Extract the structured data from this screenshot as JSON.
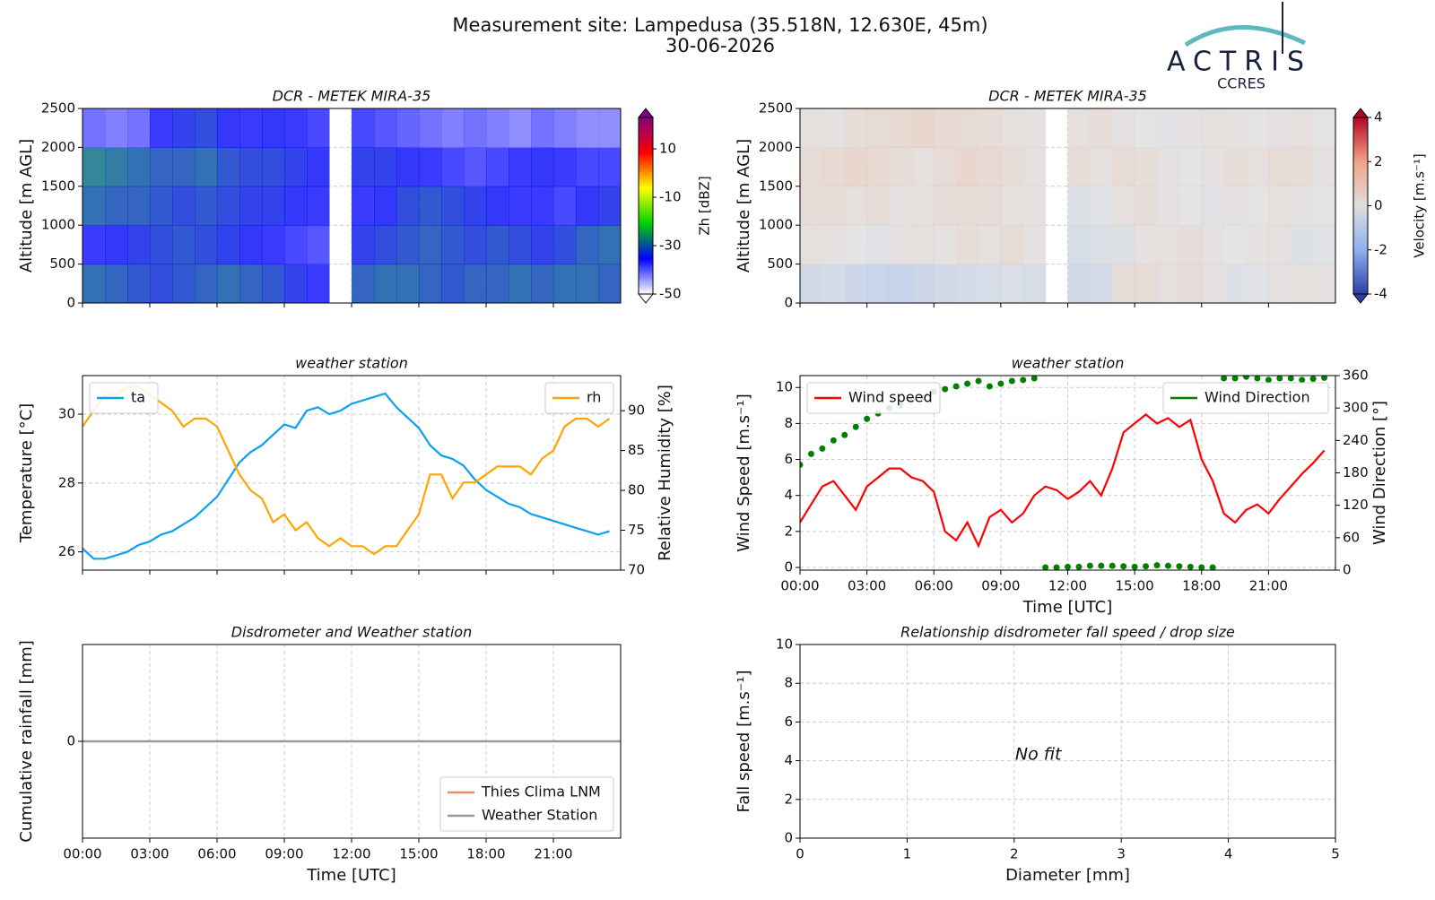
{
  "header": {
    "title": "Measurement site: Lampedusa (35.518N, 12.630E, 45m)",
    "date": "30-06-2026",
    "logo": "ACTRIS",
    "logo_sub": "CCRES"
  },
  "chart_data": [
    {
      "type": "heatmap",
      "title": "DCR - METEK MIRA-35",
      "ylabel": "Altitude [m AGL]",
      "colorbar_label": "Zh [dBZ]",
      "xlim": [
        0,
        24
      ],
      "xticks": [
        0,
        3,
        6,
        9,
        12,
        15,
        18,
        21
      ],
      "show_xtick_labels": false,
      "ylim": [
        0,
        2500
      ],
      "yticks": [
        0,
        500,
        1000,
        1500,
        2000,
        2500
      ],
      "grid": true,
      "x_bins": [
        0,
        1,
        2,
        3,
        4,
        5,
        6,
        7,
        8,
        9,
        10,
        11,
        12,
        13,
        14,
        15,
        16,
        17,
        18,
        19,
        20,
        21,
        22,
        23,
        24
      ],
      "y_bins": [
        0,
        500,
        1000,
        1500,
        2000,
        2500
      ],
      "clim": [
        -50,
        23
      ],
      "cticks": [
        -50,
        -30,
        -10,
        10
      ],
      "extend": "both",
      "colorscale": [
        "#ffffff",
        "#0000ff",
        "#00d000",
        "#ffff00",
        "#ff0000",
        "#800080"
      ],
      "z": [
        [
          -30,
          -31,
          -32,
          -33,
          -32,
          -31,
          -30,
          -31,
          -32,
          -34,
          -36,
          null,
          -31,
          -30,
          -30,
          -31,
          -32,
          -31,
          -31,
          -30,
          -31,
          -30,
          -30,
          -31
        ],
        [
          -36,
          -35,
          -34,
          -33,
          -32,
          -33,
          -34,
          -35,
          -36,
          -37,
          -38,
          null,
          -34,
          -33,
          -32,
          -31,
          -32,
          -33,
          -32,
          -33,
          -34,
          -33,
          -31,
          -30
        ],
        [
          -30,
          -31,
          -31,
          -32,
          -33,
          -32,
          -33,
          -34,
          -34,
          -35,
          -36,
          null,
          -36,
          -35,
          -33,
          -32,
          -33,
          -34,
          -35,
          -36,
          -36,
          -37,
          -35,
          -34
        ],
        [
          -28,
          -29,
          -30,
          -31,
          -31,
          -30,
          -32,
          -33,
          -33,
          -34,
          -35,
          null,
          -34,
          -34,
          -35,
          -36,
          -37,
          -38,
          -37,
          -36,
          -35,
          -36,
          -37,
          -37
        ],
        [
          -40,
          -41,
          -40,
          -36,
          -34,
          -33,
          -35,
          -36,
          -35,
          -36,
          -37,
          null,
          -37,
          -38,
          -39,
          -40,
          -41,
          -40,
          -41,
          -42,
          -40,
          -41,
          -42,
          -42
        ]
      ]
    },
    {
      "type": "heatmap",
      "title": "DCR - METEK MIRA-35",
      "ylabel": "Altitude [m AGL]",
      "colorbar_label": "Velocity [m.s⁻¹]",
      "xlim": [
        0,
        24
      ],
      "xticks": [
        0,
        3,
        6,
        9,
        12,
        15,
        18,
        21
      ],
      "show_xtick_labels": false,
      "ylim": [
        0,
        2500
      ],
      "yticks": [
        0,
        500,
        1000,
        1500,
        2000,
        2500
      ],
      "grid": true,
      "x_bins": [
        0,
        1,
        2,
        3,
        4,
        5,
        6,
        7,
        8,
        9,
        10,
        11,
        12,
        13,
        14,
        15,
        16,
        17,
        18,
        19,
        20,
        21,
        22,
        23,
        24
      ],
      "y_bins": [
        0,
        500,
        1000,
        1500,
        2000,
        2500
      ],
      "clim": [
        -4,
        4
      ],
      "cticks": [
        -4,
        -2,
        0,
        2,
        4
      ],
      "extend": "both",
      "colorscale": [
        "#2c3fa8",
        "#8fb0f2",
        "#dddddd",
        "#f2a486",
        "#b40426"
      ],
      "z": [
        [
          -0.6,
          -0.5,
          -0.7,
          -0.8,
          -0.9,
          -0.7,
          -0.6,
          -0.5,
          -0.4,
          -0.3,
          -0.4,
          null,
          -0.6,
          -0.5,
          0.3,
          0.4,
          0.2,
          0.3,
          0.1,
          -0.2,
          -0.1,
          0.1,
          0.2,
          0.1
        ],
        [
          0.2,
          0.1,
          0.0,
          -0.1,
          0.1,
          0.2,
          0.1,
          0.3,
          0.2,
          0.4,
          0.1,
          null,
          -0.4,
          -0.3,
          -0.2,
          0.1,
          0.2,
          0.3,
          0.1,
          0.0,
          0.1,
          0.2,
          -0.2,
          -0.1
        ],
        [
          0.3,
          0.4,
          0.2,
          0.3,
          0.1,
          0.2,
          0.3,
          0.4,
          0.3,
          0.2,
          0.1,
          null,
          -0.2,
          -0.1,
          0.2,
          0.3,
          0.1,
          0.0,
          -0.1,
          0.1,
          0.0,
          0.2,
          0.1,
          0.0
        ],
        [
          0.4,
          0.5,
          0.6,
          0.5,
          0.3,
          0.2,
          0.4,
          0.6,
          0.5,
          0.3,
          0.2,
          null,
          0.3,
          0.2,
          0.4,
          0.3,
          0.1,
          0.0,
          0.1,
          0.3,
          0.2,
          0.4,
          0.3,
          0.1
        ],
        [
          0.2,
          0.1,
          0.3,
          0.4,
          0.5,
          0.6,
          0.5,
          0.4,
          0.3,
          0.2,
          0.1,
          null,
          0.2,
          0.3,
          0.1,
          0.0,
          -0.1,
          0.1,
          0.2,
          0.1,
          0.0,
          0.1,
          0.2,
          0.0
        ]
      ]
    },
    {
      "type": "line",
      "title": "weather station",
      "ylabel": "Temperature [°C]",
      "y2label": "Relative Humidity [%]",
      "xlim": [
        0,
        24
      ],
      "xticks": [
        0,
        3,
        6,
        9,
        12,
        15,
        18,
        21
      ],
      "show_xtick_labels": false,
      "ylim": [
        25.47,
        31.12
      ],
      "yticks": [
        26,
        28,
        30
      ],
      "y2lim": [
        70,
        94.4
      ],
      "y2ticks": [
        70,
        75,
        80,
        85,
        90
      ],
      "grid": true,
      "x": [
        0,
        0.5,
        1,
        1.5,
        2,
        2.5,
        3,
        3.5,
        4,
        4.5,
        5,
        5.5,
        6,
        6.5,
        7,
        7.5,
        8,
        8.5,
        9,
        9.5,
        10,
        10.5,
        11,
        11.5,
        12,
        12.5,
        13,
        13.5,
        14,
        14.5,
        15,
        15.5,
        16,
        16.5,
        17,
        17.5,
        18,
        18.5,
        19,
        19.5,
        20,
        20.5,
        21,
        21.5,
        22,
        22.5,
        23,
        23.5
      ],
      "series": [
        {
          "name": "ta",
          "color": "#0ba0f0",
          "legend": "upper left",
          "values": [
            26.1,
            25.8,
            25.8,
            25.9,
            26.0,
            26.2,
            26.3,
            26.5,
            26.6,
            26.8,
            27.0,
            27.3,
            27.6,
            28.1,
            28.6,
            28.9,
            29.1,
            29.4,
            29.7,
            29.6,
            30.1,
            30.2,
            30.0,
            30.1,
            30.3,
            30.4,
            30.5,
            30.6,
            30.2,
            29.9,
            29.6,
            29.1,
            28.8,
            28.7,
            28.5,
            28.1,
            27.8,
            27.6,
            27.4,
            27.3,
            27.1,
            27.0,
            26.9,
            26.8,
            26.7,
            26.6,
            26.5,
            26.6
          ]
        },
        {
          "name": "rh",
          "color": "#ffa500",
          "legend": "upper right",
          "axis": "y2",
          "values": [
            88,
            90,
            92,
            92,
            93,
            93,
            92,
            91,
            90,
            88,
            89,
            89,
            88,
            85,
            82,
            80,
            79,
            76,
            77,
            75,
            76,
            74,
            73,
            74,
            73,
            73,
            72,
            73,
            73,
            75,
            77,
            82,
            82,
            79,
            81,
            81,
            82,
            83,
            83,
            83,
            82,
            84,
            85,
            88,
            89,
            89,
            88,
            89
          ]
        }
      ]
    },
    {
      "type": "line",
      "title": "weather station",
      "ylabel": "Wind Speed [m.s⁻¹]",
      "y2label": "Wind Direction [°]",
      "xlabel": "Time [UTC]",
      "xlim": [
        0,
        24
      ],
      "xticks": [
        {
          "value": 0,
          "label": "00:00"
        },
        {
          "value": 3,
          "label": "03:00"
        },
        {
          "value": 6,
          "label": "06:00"
        },
        {
          "value": 9,
          "label": "09:00"
        },
        {
          "value": 12,
          "label": "12:00"
        },
        {
          "value": 15,
          "label": "15:00"
        },
        {
          "value": 18,
          "label": "18:00"
        },
        {
          "value": 21,
          "label": "21:00"
        }
      ],
      "ylim": [
        -0.15,
        10.66
      ],
      "yticks": [
        0,
        2,
        4,
        6,
        8,
        10
      ],
      "y2lim": [
        0,
        360
      ],
      "y2ticks": [
        0,
        60,
        120,
        180,
        240,
        300,
        360
      ],
      "grid": true,
      "x": [
        0,
        0.5,
        1,
        1.5,
        2,
        2.5,
        3,
        3.5,
        4,
        4.5,
        5,
        5.5,
        6,
        6.5,
        7,
        7.5,
        8,
        8.5,
        9,
        9.5,
        10,
        10.5,
        11,
        11.5,
        12,
        12.5,
        13,
        13.5,
        14,
        14.5,
        15,
        15.5,
        16,
        16.5,
        17,
        17.5,
        18,
        18.5,
        19,
        19.5,
        20,
        20.5,
        21,
        21.5,
        22,
        22.5,
        23,
        23.5
      ],
      "series": [
        {
          "name": "Wind speed",
          "color": "#ff0000",
          "legend": "upper left",
          "values": [
            2.5,
            3.5,
            4.5,
            4.8,
            4.0,
            3.2,
            4.5,
            5.0,
            5.5,
            5.5,
            5.0,
            4.8,
            4.2,
            2.0,
            1.5,
            2.5,
            1.2,
            2.8,
            3.2,
            2.5,
            3.0,
            4.0,
            4.5,
            4.3,
            3.8,
            4.2,
            4.8,
            4.0,
            5.5,
            7.5,
            8.0,
            8.5,
            8.0,
            8.3,
            7.8,
            8.2,
            6.0,
            4.8,
            3.0,
            2.5,
            3.2,
            3.5,
            3.0,
            3.8,
            4.5,
            5.2,
            5.8,
            6.5
          ]
        },
        {
          "name": "Wind Direction",
          "color": "#008000",
          "legend": "upper right",
          "axis": "y2",
          "mode": "markers",
          "values": [
            195,
            215,
            225,
            240,
            250,
            265,
            280,
            290,
            300,
            305,
            315,
            320,
            330,
            335,
            340,
            345,
            350,
            340,
            345,
            350,
            352,
            355,
            5,
            5,
            6,
            6,
            8,
            8,
            8,
            7,
            6,
            7,
            9,
            8,
            7,
            6,
            5,
            5,
            355,
            355,
            358,
            355,
            352,
            355,
            355,
            352,
            354,
            356
          ]
        }
      ]
    },
    {
      "type": "line",
      "title": "Disdrometer and Weather station",
      "ylabel": "Cumulative rainfall [mm]",
      "xlabel": "Time [UTC]",
      "xlim": [
        0,
        24
      ],
      "xticks": [
        {
          "value": 0,
          "label": "00:00"
        },
        {
          "value": 3,
          "label": "03:00"
        },
        {
          "value": 6,
          "label": "06:00"
        },
        {
          "value": 9,
          "label": "09:00"
        },
        {
          "value": 12,
          "label": "12:00"
        },
        {
          "value": 15,
          "label": "15:00"
        },
        {
          "value": 18,
          "label": "18:00"
        },
        {
          "value": 21,
          "label": "21:00"
        }
      ],
      "ylim": [
        -1,
        1
      ],
      "yticks": [
        0
      ],
      "grid": true,
      "x": [
        0,
        24
      ],
      "series": [
        {
          "name": "Thies Clima LNM",
          "color": "#f08a60",
          "legend": "lower right",
          "values": [
            0,
            0
          ]
        },
        {
          "name": "Weather Station",
          "color": "#999999",
          "legend": "lower right",
          "values": [
            0,
            0
          ]
        }
      ]
    },
    {
      "type": "scatter",
      "title": "Relationship disdrometer fall speed / drop size",
      "xlabel": "Diameter [mm]",
      "ylabel": "Fall speed [m.s⁻¹]",
      "annotation": "No fit",
      "xlim": [
        0,
        5
      ],
      "xticks": [
        0,
        1,
        2,
        3,
        4,
        5
      ],
      "ylim": [
        0,
        10
      ],
      "yticks": [
        0,
        2,
        4,
        6,
        8,
        10
      ],
      "grid": true,
      "series": []
    }
  ]
}
